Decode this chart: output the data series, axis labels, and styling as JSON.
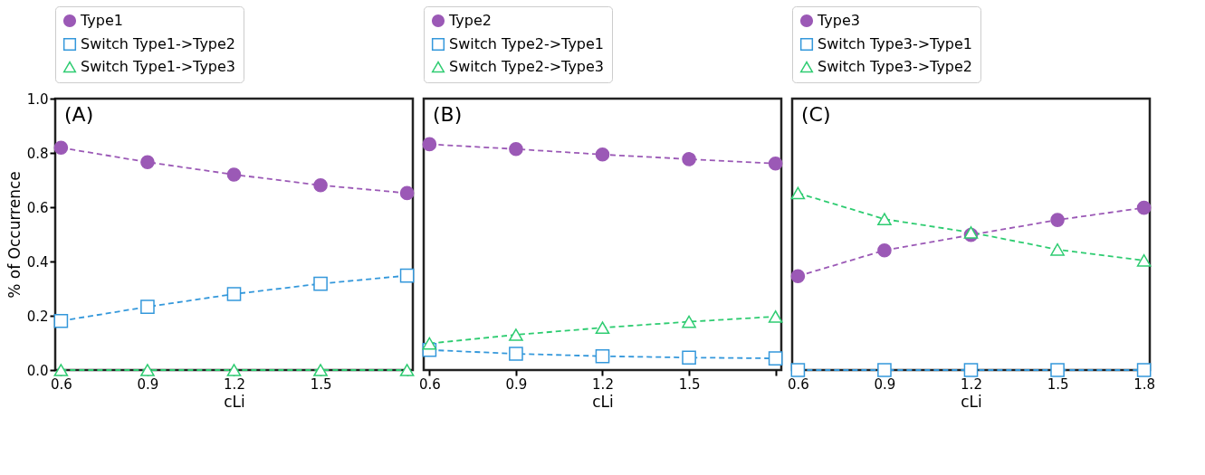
{
  "chart_data": [
    {
      "type": "line",
      "xlabel": "cLi",
      "ylabel": "% of Occurrence",
      "annotations": [
        "(A)"
      ],
      "legend": "top",
      "grid": false,
      "line_style": "dashed",
      "x": [
        0.6,
        0.9,
        1.2,
        1.5,
        1.8
      ],
      "xlim": [
        0.58,
        1.82
      ],
      "xticks": [
        0.6,
        0.9,
        1.2,
        1.5,
        {
          "value": 1.8,
          "label": null
        }
      ],
      "ylim": [
        0,
        1.0
      ],
      "yticks": [
        {
          "value": 0,
          "label": "0.0"
        },
        0.2,
        0.4,
        0.6,
        0.8,
        {
          "value": 1,
          "label": "1.0"
        }
      ],
      "series": [
        {
          "name": "Type1",
          "color": "#9b59b6",
          "marker": "circle",
          "values": [
            0.819,
            0.766,
            0.72,
            0.681,
            0.652
          ]
        },
        {
          "name": "Switch Type1->Type2",
          "color": "#3498db",
          "marker": "square",
          "values": [
            0.181,
            0.233,
            0.28,
            0.318,
            0.348
          ]
        },
        {
          "name": "Switch Type1->Type3",
          "color": "#2ecc71",
          "marker": "triangle",
          "values": [
            0,
            0,
            0,
            0,
            0
          ]
        }
      ]
    },
    {
      "type": "line",
      "xlabel": "cLi",
      "annotations": [
        "(B)"
      ],
      "legend": "top",
      "grid": false,
      "line_style": "dashed",
      "tick_labels": "x",
      "x": [
        0.6,
        0.9,
        1.2,
        1.5,
        1.8
      ],
      "xlim": [
        0.58,
        1.82
      ],
      "xticks": [
        0.6,
        0.9,
        1.2,
        1.5,
        {
          "value": 1.8,
          "label": null
        }
      ],
      "ylim": [
        0,
        1.0
      ],
      "series": [
        {
          "name": "Type2",
          "color": "#9b59b6",
          "marker": "circle",
          "values": [
            0.832,
            0.814,
            0.794,
            0.777,
            0.761
          ]
        },
        {
          "name": "Switch Type2->Type1",
          "color": "#3498db",
          "marker": "square",
          "values": [
            0.074,
            0.06,
            0.051,
            0.046,
            0.043
          ]
        },
        {
          "name": "Switch Type2->Type3",
          "color": "#2ecc71",
          "marker": "triangle",
          "values": [
            0.098,
            0.13,
            0.156,
            0.178,
            0.197
          ]
        }
      ]
    },
    {
      "type": "line",
      "xlabel": "cLi",
      "annotations": [
        "(C)"
      ],
      "legend": "top",
      "grid": false,
      "line_style": "dashed",
      "tick_labels": "x",
      "x": [
        0.6,
        0.9,
        1.2,
        1.5,
        1.8
      ],
      "xlim": [
        0.58,
        1.82
      ],
      "xticks": [
        0.6,
        0.9,
        1.2,
        1.5,
        1.8
      ],
      "ylim": [
        0,
        1.0
      ],
      "series": [
        {
          "name": "Type3",
          "color": "#9b59b6",
          "marker": "circle",
          "values": [
            0.346,
            0.441,
            0.498,
            0.553,
            0.598
          ]
        },
        {
          "name": "Switch Type3->Type1",
          "color": "#3498db",
          "marker": "square",
          "values": [
            0,
            0,
            0,
            0,
            0
          ]
        },
        {
          "name": "Switch Type3->Type2",
          "color": "#2ecc71",
          "marker": "triangle",
          "values": [
            0.652,
            0.556,
            0.507,
            0.444,
            0.404
          ]
        }
      ]
    }
  ]
}
